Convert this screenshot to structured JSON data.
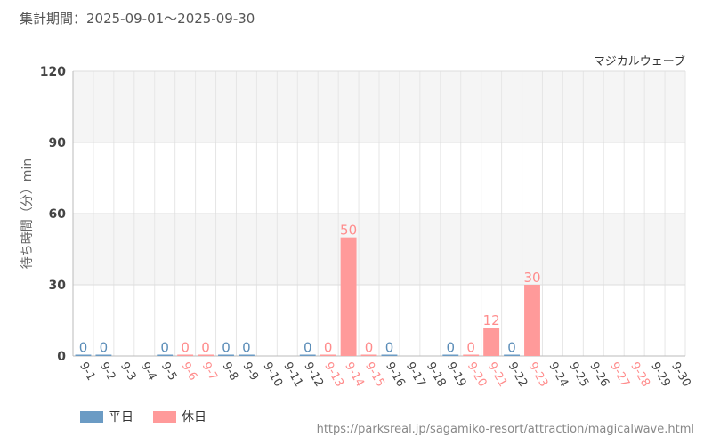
{
  "header": {
    "period": "集計期間：2025-09-01～2025-09-30"
  },
  "footer": {
    "url": "https://parksreal.jp/sagamiko-resort/attraction/magicalwave.html"
  },
  "legend": [
    {
      "label": "平日",
      "color": "#6b9bc4"
    },
    {
      "label": "休日",
      "color": "#ff9a9a"
    }
  ],
  "colors": {
    "weekday": "#6b9bc4",
    "holiday": "#ff9a9a",
    "holiday_label": "#ff8c8c",
    "weekday_label": "#5b8db8",
    "axis_text": "#444444",
    "grid": "#dddddd",
    "band": "#f5f5f5"
  },
  "chart_data": {
    "type": "bar",
    "title": "マジカルウェーブ",
    "ylabel": "待ち時間（分）min",
    "xlabel": "",
    "ylim": [
      0,
      120
    ],
    "yticks": [
      0,
      30,
      60,
      90,
      120
    ],
    "grid": true,
    "legend_position": "bottom-left",
    "categories": [
      "9-1",
      "9-2",
      "9-3",
      "9-4",
      "9-5",
      "9-6",
      "9-7",
      "9-8",
      "9-9",
      "9-10",
      "9-11",
      "9-12",
      "9-13",
      "9-14",
      "9-15",
      "9-16",
      "9-17",
      "9-18",
      "9-19",
      "9-20",
      "9-21",
      "9-22",
      "9-23",
      "9-24",
      "9-25",
      "9-26",
      "9-27",
      "9-28",
      "9-29",
      "9-30"
    ],
    "day_type": [
      "平日",
      "平日",
      "平日",
      "平日",
      "平日",
      "休日",
      "休日",
      "平日",
      "平日",
      "平日",
      "平日",
      "平日",
      "休日",
      "休日",
      "休日",
      "平日",
      "平日",
      "平日",
      "平日",
      "休日",
      "休日",
      "平日",
      "休日",
      "平日",
      "平日",
      "平日",
      "休日",
      "休日",
      "平日",
      "平日"
    ],
    "values": [
      0,
      0,
      null,
      null,
      0,
      0,
      0,
      0,
      0,
      null,
      null,
      0,
      0,
      50,
      0,
      0,
      null,
      null,
      0,
      0,
      12,
      0,
      30,
      null,
      null,
      null,
      null,
      null,
      null,
      null
    ]
  }
}
